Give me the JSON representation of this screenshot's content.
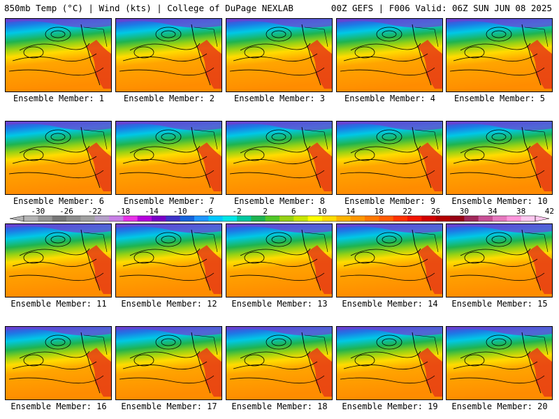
{
  "header": {
    "left_title": "850mb Temp (°C) | Wind (kts) | College of DuPage NEXLAB",
    "right_title": "00Z GEFS | F006 Valid: 06Z SUN JUN 08 2025"
  },
  "panels": [
    {
      "label": "Ensemble Member: 1"
    },
    {
      "label": "Ensemble Member: 2"
    },
    {
      "label": "Ensemble Member: 3"
    },
    {
      "label": "Ensemble Member: 4"
    },
    {
      "label": "Ensemble Member: 5"
    },
    {
      "label": "Ensemble Member: 6"
    },
    {
      "label": "Ensemble Member: 7"
    },
    {
      "label": "Ensemble Member: 8"
    },
    {
      "label": "Ensemble Member: 9"
    },
    {
      "label": "Ensemble Member: 10"
    },
    {
      "label": "Ensemble Member: 11"
    },
    {
      "label": "Ensemble Member: 12"
    },
    {
      "label": "Ensemble Member: 13"
    },
    {
      "label": "Ensemble Member: 14"
    },
    {
      "label": "Ensemble Member: 15"
    },
    {
      "label": "Ensemble Member: 16"
    },
    {
      "label": "Ensemble Member: 17"
    },
    {
      "label": "Ensemble Member: 18"
    },
    {
      "label": "Ensemble Member: 19"
    },
    {
      "label": "Ensemble Member: 20"
    }
  ],
  "colorbar": {
    "labels": [
      "-30",
      "-26",
      "-22",
      "-18",
      "-14",
      "-10",
      "-6",
      "-2",
      "2",
      "6",
      "10",
      "14",
      "18",
      "22",
      "26",
      "30",
      "34",
      "38",
      "42"
    ],
    "colors": [
      "#b4b4b4",
      "#969696",
      "#787878",
      "#8c8c8c",
      "#a0a0a0",
      "#b4a0c8",
      "#c880e6",
      "#e632e6",
      "#b400dc",
      "#7800c8",
      "#3c32c8",
      "#1464dc",
      "#1e96ff",
      "#00c8ff",
      "#00e6e6",
      "#00c8a0",
      "#1eb450",
      "#50c828",
      "#96d214",
      "#c8e600",
      "#ffff00",
      "#ffdc00",
      "#ffb400",
      "#ff9600",
      "#ff7800",
      "#ff5a00",
      "#ff3200",
      "#f01400",
      "#d20000",
      "#b40000",
      "#960014",
      "#a0285a",
      "#c85096",
      "#e678be",
      "#ff96dc",
      "#ffc8f0"
    ]
  }
}
